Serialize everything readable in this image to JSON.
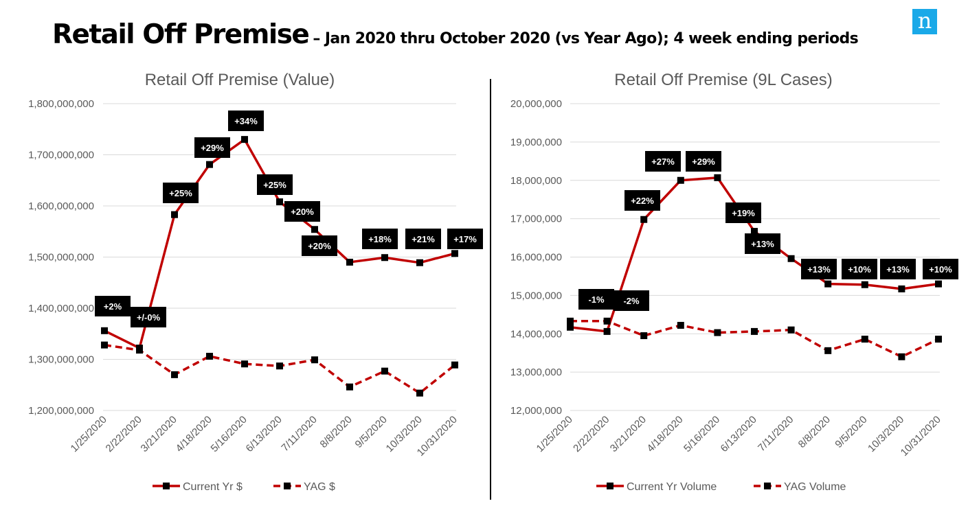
{
  "header": {
    "title": "Retail Off Premise",
    "subtitle": "– Jan 2020 thru October 2020 (vs Year Ago); 4 week ending periods",
    "logo_text": "n",
    "logo_color": "#1aa9e8"
  },
  "colors": {
    "series": "#c00000",
    "marker": "#000000",
    "grid": "#d9d9d9",
    "label_bg": "#000000"
  },
  "chart_data": [
    {
      "type": "line",
      "title": "Retail Off Premise (Value)",
      "categories": [
        "1/25/2020",
        "2/22/2020",
        "3/21/2020",
        "4/18/2020",
        "5/16/2020",
        "6/13/2020",
        "7/11/2020",
        "8/8/2020",
        "9/5/2020",
        "10/3/2020",
        "10/31/2020"
      ],
      "ylim": [
        1200000000,
        1800000000
      ],
      "yticks": [
        1200000000,
        1300000000,
        1400000000,
        1500000000,
        1600000000,
        1700000000,
        1800000000
      ],
      "ytick_labels": [
        "1,200,000,000",
        "1,300,000,000",
        "1,400,000,000",
        "1,500,000,000",
        "1,600,000,000",
        "1,700,000,000",
        "1,800,000,000"
      ],
      "grid": true,
      "legend": "bottom",
      "series": [
        {
          "name": "Current Yr $",
          "style": "solid",
          "values": [
            1356000000,
            1322000000,
            1583000000,
            1681000000,
            1730000000,
            1608000000,
            1554000000,
            1490000000,
            1499000000,
            1489000000,
            1507000000
          ]
        },
        {
          "name": "YAG $",
          "style": "dashed",
          "values": [
            1328000000,
            1318000000,
            1270000000,
            1306000000,
            1291000000,
            1287000000,
            1299000000,
            1246000000,
            1277000000,
            1234000000,
            1289000000
          ]
        }
      ],
      "data_labels": [
        "+2%",
        "+/-0%",
        "+25%",
        "+29%",
        "+34%",
        "+25%",
        "+20%",
        "+20%",
        "+18%",
        "+21%",
        "+17%"
      ]
    },
    {
      "type": "line",
      "title": "Retail Off Premise (9L Cases)",
      "categories": [
        "1/25/2020",
        "2/22/2020",
        "3/21/2020",
        "4/18/2020",
        "5/16/2020",
        "6/13/2020",
        "7/11/2020",
        "8/8/2020",
        "9/5/2020",
        "10/3/2020",
        "10/31/2020"
      ],
      "ylim": [
        12000000,
        20000000
      ],
      "yticks": [
        12000000,
        13000000,
        14000000,
        15000000,
        16000000,
        17000000,
        18000000,
        19000000,
        20000000
      ],
      "ytick_labels": [
        "12,000,000",
        "13,000,000",
        "14,000,000",
        "15,000,000",
        "16,000,000",
        "17,000,000",
        "18,000,000",
        "19,000,000",
        "20,000,000"
      ],
      "grid": true,
      "legend": "bottom",
      "series": [
        {
          "name": "Current Yr Volume",
          "style": "solid",
          "values": [
            14170000,
            14060000,
            16980000,
            18000000,
            18070000,
            16670000,
            15960000,
            15300000,
            15280000,
            15170000,
            15300000
          ]
        },
        {
          "name": "YAG Volume",
          "style": "dashed",
          "values": [
            14330000,
            14330000,
            13950000,
            14220000,
            14030000,
            14060000,
            14100000,
            13560000,
            13860000,
            13400000,
            13860000
          ]
        }
      ],
      "data_labels": [
        "-1%",
        "-2%",
        "+22%",
        "+27%",
        "+29%",
        "+19%",
        "+13%",
        "+13%",
        "+10%",
        "+13%",
        "+10%"
      ]
    }
  ]
}
